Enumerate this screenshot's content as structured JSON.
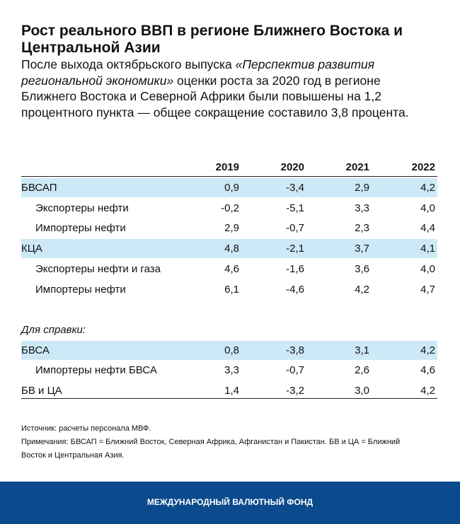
{
  "header": {
    "title": "Рост реального ВВП в регионе Ближнего Востока и Центральной Азии",
    "subtitle": {
      "before": "После выхода октябрьского выпуска ",
      "italic": "«Перспектив развития региональной экономики»",
      "after": " оценки роста за 2020 год в регионе Ближнего Востока и Северной Африки были повышены на 1,2 процентного пункта — общее сокращение составило 3,8 процента."
    }
  },
  "table": {
    "columns": [
      "2019",
      "2020",
      "2021",
      "2022"
    ],
    "rows": [
      {
        "label": "БВСАП",
        "values": [
          "0,9",
          "-3,4",
          "2,9",
          "4,2"
        ]
      },
      {
        "label": "Экспортеры нефти",
        "values": [
          "-0,2",
          "-5,1",
          "3,3",
          "4,0"
        ]
      },
      {
        "label": "Импортеры нефти",
        "values": [
          "2,9",
          "-0,7",
          "2,3",
          "4,4"
        ]
      },
      {
        "label": "КЦА",
        "values": [
          "4,8",
          "-2,1",
          "3,7",
          "4,1"
        ]
      },
      {
        "label": "Экспортеры нефти и газа",
        "values": [
          "4,6",
          "-1,6",
          "3,6",
          "4,0"
        ]
      },
      {
        "label": "Импортеры нефти",
        "values": [
          "6,1",
          "-4,6",
          "4,2",
          "4,7"
        ]
      }
    ],
    "reference_label": "Для справки:",
    "reference_rows": [
      {
        "label": "БВСА",
        "values": [
          "0,8",
          "-3,8",
          "3,1",
          "4,2"
        ]
      },
      {
        "label": "Импортеры нефти БВСА",
        "values": [
          "3,3",
          "-0,7",
          "2,6",
          "4,6"
        ]
      },
      {
        "label": "БВ и ЦА",
        "values": [
          "1,4",
          "-3,2",
          "3,0",
          "4,2"
        ]
      }
    ]
  },
  "notes": {
    "source": "Источник: расчеты персонала МВФ.",
    "remarks": "Примечания: БВСАП = Ближний Восток, Северная Африка, Афганистан и Пакистан. БВ и ЦА = Ближний Восток и Центральная Азия."
  },
  "footer": {
    "text": "МЕЖДУНАРОДНЫЙ ВАЛЮТНЫЙ ФОНД"
  }
}
